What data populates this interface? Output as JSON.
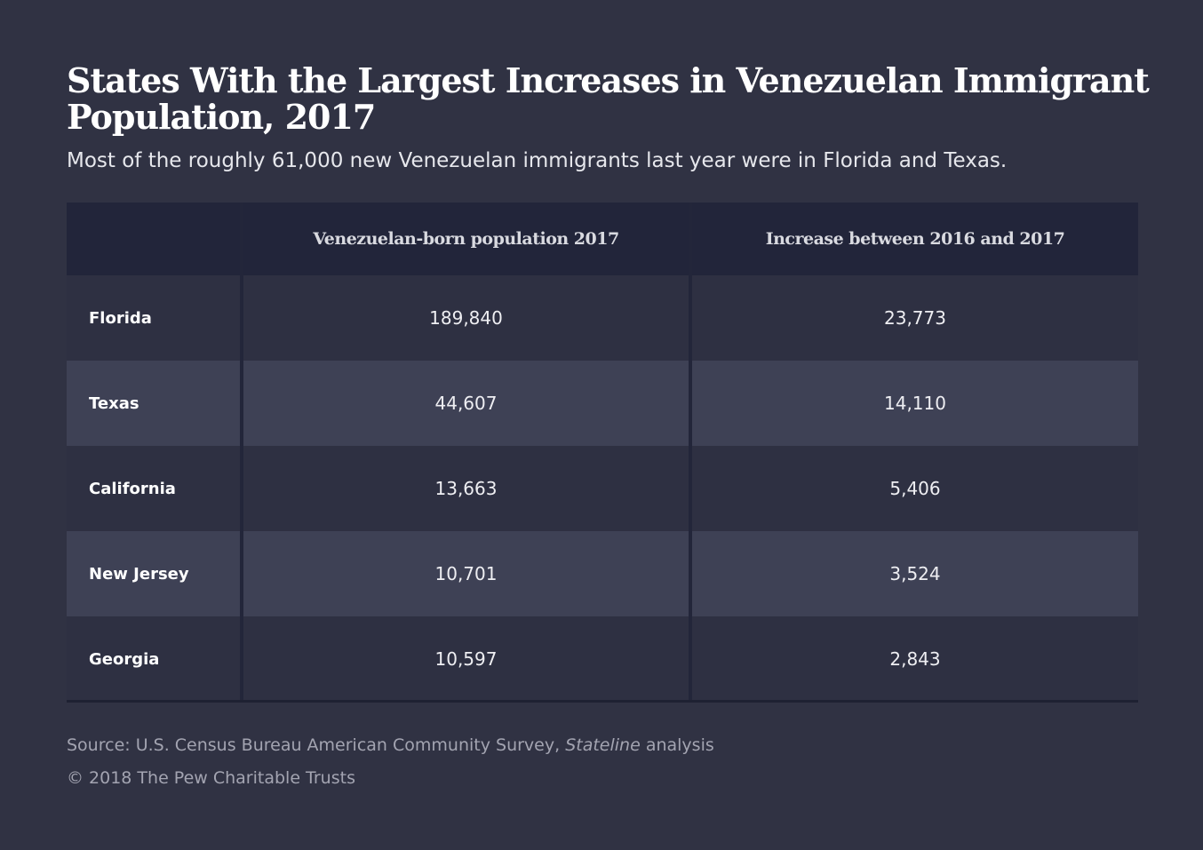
{
  "chart_data": {
    "type": "table",
    "title": "States With the Largest Increases in Venezuelan Immigrant Population, 2017",
    "subtitle": "Most of the roughly 61,000 new Venezuelan immigrants last year were in Florida and Texas.",
    "columns": [
      "",
      "Venezuelan-born population 2017",
      "Increase between 2016 and 2017"
    ],
    "rows": [
      {
        "state": "Florida",
        "population": "189,840",
        "increase": "23,773"
      },
      {
        "state": "Texas",
        "population": "44,607",
        "increase": "14,110"
      },
      {
        "state": "California",
        "population": "13,663",
        "increase": "5,406"
      },
      {
        "state": "New Jersey",
        "population": "10,701",
        "increase": "3,524"
      },
      {
        "state": "Georgia",
        "population": "10,597",
        "increase": "2,843"
      }
    ]
  },
  "footer": {
    "source_prefix": "Source: U.S. Census Bureau American Community Survey, ",
    "source_italic": "Stateline",
    "source_suffix": " analysis",
    "copyright": "© 2018 The Pew Charitable Trusts"
  },
  "colors": {
    "background": "#303243",
    "header_background": "#22253a",
    "row_dark": "#2e3042",
    "row_light": "#3e4155",
    "text": "#ffffff",
    "source_text": "#a3a4b1"
  }
}
